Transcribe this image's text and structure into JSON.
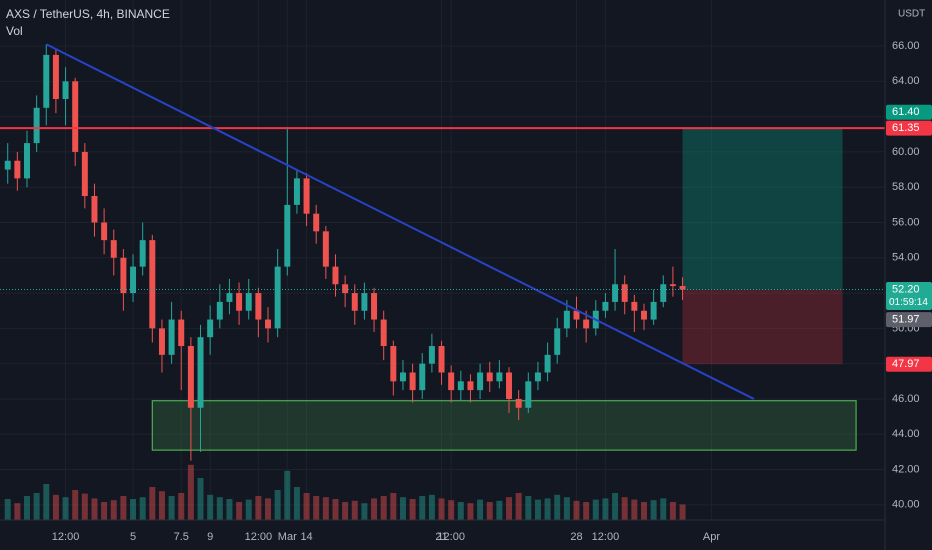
{
  "chart_data": {
    "type": "candlestick",
    "title": "AXS / TetherUS, 4h, BINANCE",
    "indicator": "Vol",
    "currency": "USDT",
    "up_color": "#26a69a",
    "down_color": "#ef5350",
    "xlim": [
      -1.9,
      44
    ],
    "ylim": [
      39.14,
      68.61
    ],
    "vlim": [
      0,
      100
    ],
    "xticks": [
      {
        "value": 1.5,
        "label": "12:00"
      },
      5,
      9,
      {
        "value": 13,
        "label": "Mar"
      },
      7.5,
      {
        "value": 11.5,
        "label": "12:00"
      },
      14,
      {
        "value": 21.5,
        "label": "12:00"
      },
      21,
      {
        "value": 29.5,
        "label": "12:00"
      },
      28,
      {
        "value": 35,
        "label": "Apr"
      }
    ],
    "yticks": [
      {
        "value": 40,
        "label": "40.00"
      },
      {
        "value": 42,
        "label": "42.00"
      },
      {
        "value": 44,
        "label": "44.00"
      },
      {
        "value": 46,
        "label": "46.00"
      },
      {
        "value": 48,
        "label": "48.00"
      },
      {
        "value": 50,
        "label": "50.00"
      },
      {
        "value": 52,
        "label": "52.00"
      },
      {
        "value": 54,
        "label": "54.00"
      },
      {
        "value": 56,
        "label": "56.00"
      },
      {
        "value": 58,
        "label": "58.00"
      },
      {
        "value": 60,
        "label": "60.00"
      },
      {
        "value": 62,
        "label": "62.00"
      },
      {
        "value": 64,
        "label": "64.00"
      },
      {
        "value": 66,
        "label": "66.00"
      }
    ],
    "x": [
      -1.5,
      -1,
      -0.5,
      0,
      0.5,
      1,
      1.5,
      2,
      2.5,
      3,
      3.5,
      4,
      4.5,
      5,
      5.5,
      6,
      6.5,
      7,
      7.5,
      8,
      8.5,
      9,
      9.5,
      10,
      10.5,
      11,
      11.5,
      12,
      12.5,
      13,
      13.5,
      14,
      14.5,
      15,
      15.5,
      16,
      16.5,
      17,
      17.5,
      18,
      18.5,
      19,
      19.5,
      20,
      20.5,
      21,
      21.5,
      22,
      22.5,
      23,
      23.5,
      24,
      24.5,
      25,
      25.5,
      26,
      26.5,
      27,
      27.5,
      28,
      28.5,
      29,
      29.5,
      30,
      30.5,
      31,
      31.5,
      32,
      32.5,
      33,
      33.5
    ],
    "ohlc": [
      [
        59,
        60.5,
        58.2,
        59.5
      ],
      [
        59.5,
        60,
        57.8,
        58.5
      ],
      [
        58.5,
        61.2,
        58,
        60.5
      ],
      [
        60.5,
        63.2,
        60,
        62.5
      ],
      [
        62.5,
        66.1,
        61.5,
        65.5
      ],
      [
        65.5,
        65.8,
        62.2,
        63
      ],
      [
        63,
        64.8,
        61.5,
        64
      ],
      [
        64,
        64.2,
        59.2,
        60
      ],
      [
        60,
        60.5,
        56.8,
        57.5
      ],
      [
        57.5,
        58.2,
        55.2,
        56
      ],
      [
        56,
        56.8,
        54.2,
        55
      ],
      [
        55,
        55.6,
        53,
        54
      ],
      [
        54,
        54.5,
        51,
        52
      ],
      [
        52,
        54.2,
        51.5,
        53.5
      ],
      [
        53.5,
        56,
        53,
        55
      ],
      [
        55,
        55.3,
        49.2,
        50
      ],
      [
        50,
        50.5,
        47.5,
        48.5
      ],
      [
        48.5,
        51.5,
        48,
        50.5
      ],
      [
        50.5,
        51,
        46.5,
        49
      ],
      [
        49,
        49.5,
        42.5,
        45.5
      ],
      [
        45.5,
        50.2,
        43,
        49.5
      ],
      [
        49.5,
        51.3,
        48.5,
        50.5
      ],
      [
        50.5,
        52.5,
        50,
        51.5
      ],
      [
        51.5,
        52.8,
        50.8,
        52
      ],
      [
        52,
        52.6,
        50.2,
        51
      ],
      [
        51,
        52.8,
        50.5,
        52
      ],
      [
        52,
        52.3,
        49.5,
        50.5
      ],
      [
        50.5,
        51.2,
        49.2,
        50
      ],
      [
        50,
        54.5,
        49.5,
        53.5
      ],
      [
        53.5,
        61.4,
        53,
        57
      ],
      [
        57,
        59,
        56.5,
        58.5
      ],
      [
        58.5,
        58.8,
        55.8,
        56.5
      ],
      [
        56.5,
        57,
        54.8,
        55.5
      ],
      [
        55.5,
        55.8,
        52.8,
        53.5
      ],
      [
        53.5,
        54.2,
        51.8,
        52.5
      ],
      [
        52.5,
        53,
        51.2,
        52
      ],
      [
        52,
        52.5,
        50.2,
        51
      ],
      [
        51,
        52.6,
        50.5,
        52
      ],
      [
        52,
        52.3,
        49.8,
        50.5
      ],
      [
        50.5,
        51,
        48.2,
        49
      ],
      [
        49,
        49.3,
        46.2,
        47
      ],
      [
        47,
        48.2,
        46.5,
        47.5
      ],
      [
        47.5,
        48,
        45.8,
        46.5
      ],
      [
        46.5,
        48.6,
        46,
        48
      ],
      [
        48,
        49.7,
        47.5,
        49
      ],
      [
        49,
        49.3,
        46.8,
        47.5
      ],
      [
        47.5,
        47.9,
        45.8,
        46.5
      ],
      [
        46.5,
        47.6,
        45.9,
        47
      ],
      [
        47,
        47.4,
        45.8,
        46.5
      ],
      [
        46.5,
        48,
        46,
        47.5
      ],
      [
        47.5,
        48.1,
        46.4,
        47
      ],
      [
        47,
        48.2,
        46.6,
        47.5
      ],
      [
        47.5,
        47.8,
        45.2,
        46
      ],
      [
        46,
        46.5,
        44.8,
        45.5
      ],
      [
        45.5,
        47.5,
        45.2,
        47
      ],
      [
        47,
        48.1,
        46.5,
        47.5
      ],
      [
        47.5,
        49.2,
        47,
        48.5
      ],
      [
        48.5,
        50.6,
        48,
        50
      ],
      [
        50,
        51.6,
        49.5,
        51
      ],
      [
        51,
        51.8,
        50,
        50.5
      ],
      [
        50.5,
        51,
        49.2,
        50
      ],
      [
        50,
        51.6,
        49.6,
        51
      ],
      [
        51,
        52,
        50.6,
        51.5
      ],
      [
        51.5,
        54.5,
        51,
        52.5
      ],
      [
        52.5,
        53,
        50.8,
        51.5
      ],
      [
        51.5,
        51.9,
        49.8,
        51
      ],
      [
        51,
        51.4,
        49.9,
        50.5
      ],
      [
        50.5,
        52.2,
        50.2,
        51.5
      ],
      [
        51.5,
        53,
        51.2,
        52.5
      ],
      [
        52.5,
        53.5,
        51.8,
        52.4
      ],
      [
        52.4,
        52.9,
        51.6,
        52.2
      ]
    ],
    "volume": [
      35,
      28,
      40,
      45,
      60,
      42,
      38,
      50,
      44,
      36,
      30,
      33,
      40,
      35,
      38,
      55,
      48,
      40,
      45,
      92,
      70,
      42,
      38,
      35,
      30,
      34,
      40,
      36,
      50,
      82,
      55,
      45,
      40,
      38,
      35,
      30,
      32,
      28,
      36,
      40,
      45,
      38,
      35,
      40,
      42,
      36,
      33,
      30,
      28,
      34,
      30,
      32,
      38,
      45,
      40,
      34,
      36,
      42,
      38,
      32,
      30,
      34,
      36,
      45,
      38,
      34,
      30,
      33,
      36,
      30,
      26
    ],
    "horizontal_line": {
      "price": 61.35,
      "color": "#f23645"
    },
    "trendline": {
      "x": [
        0.5,
        37.2
      ],
      "price": [
        66.1,
        46.0
      ],
      "color": "#2843c8"
    },
    "support_zone": {
      "x": [
        6,
        42.5
      ],
      "price": [
        43.1,
        45.9
      ],
      "color": "#4caf50"
    },
    "long_position": {
      "x": [
        33.5,
        41.8
      ],
      "entry": 52.2,
      "target": 61.4,
      "stop": 47.97
    },
    "price_labels": [
      {
        "value": 61.4,
        "label": "61.40",
        "color": "#089981"
      },
      {
        "value": 61.35,
        "label": "61.35",
        "color": "#f23645"
      },
      {
        "value": 52.2,
        "label": "52.20",
        "color": "#22ab94"
      },
      {
        "value": 51.97,
        "label": "51.97",
        "color": "#5d606b"
      },
      {
        "value": 47.97,
        "label": "47.97",
        "color": "#f23645"
      }
    ],
    "countdown": "01:59:14"
  }
}
